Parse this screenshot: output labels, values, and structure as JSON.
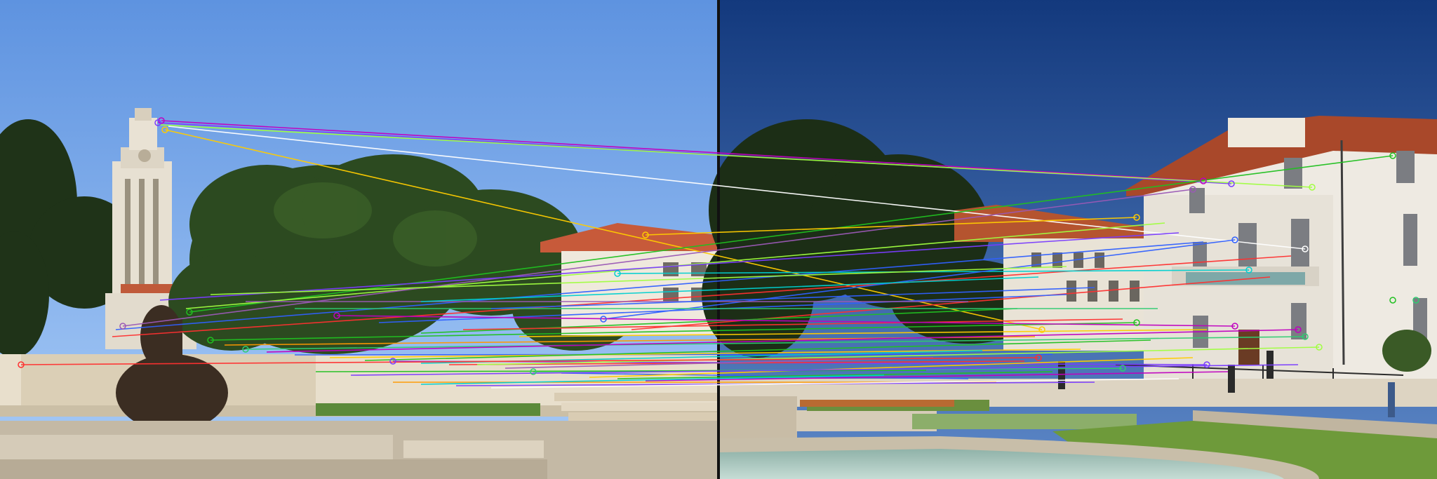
{
  "scene": {
    "layout": "side-by-side-stereo-pair",
    "overlay": "feature-match-lines",
    "left_view": {
      "subject": "campus-clock-tower-fountain-oak-trees",
      "sky_top": "#5e93e0",
      "sky_bottom": "#a9ccf7"
    },
    "right_view": {
      "subject": "campus-building-oak-trees-fountain-lawn",
      "sky_top": "#13397d",
      "sky_bottom": "#5d88c8"
    },
    "match_colors": [
      "#c000c0",
      "#7a3cff",
      "#ff3030",
      "#ffcc00",
      "#20c020",
      "#00d0d0",
      "#3060ff",
      "#ff9900",
      "#ffffff",
      "#a0ff40",
      "#9b59b6",
      "#2ecc71"
    ]
  }
}
